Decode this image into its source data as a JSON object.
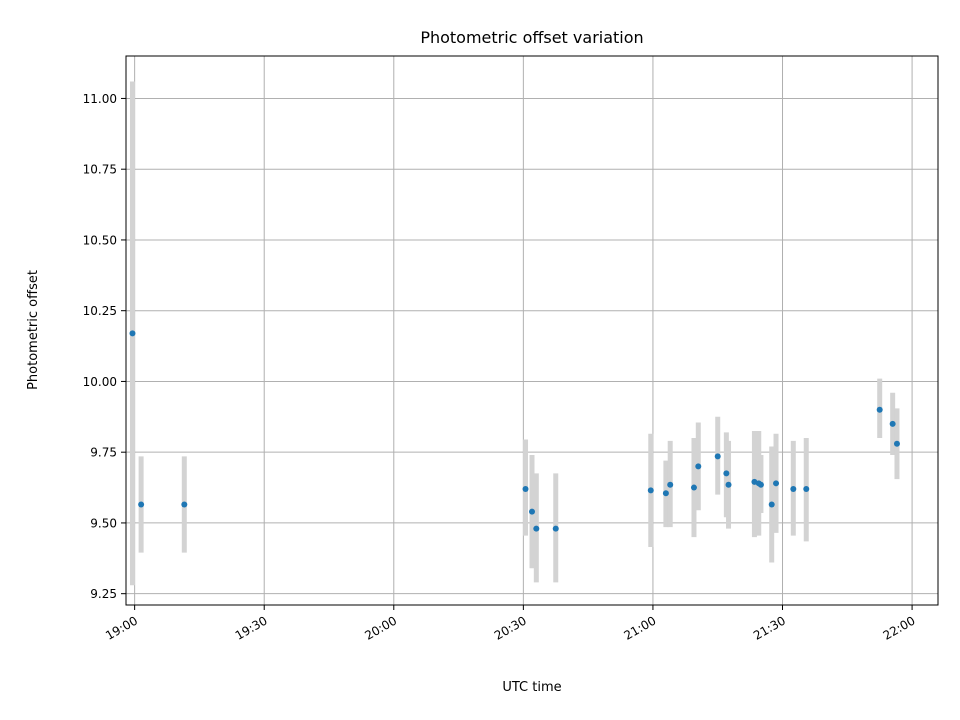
{
  "chart_data": {
    "type": "scatter",
    "title": "Photometric offset variation",
    "xlabel": "UTC time",
    "ylabel": "Photometric offset",
    "xlim": [
      "18:58",
      "22:06"
    ],
    "ylim": [
      9.21,
      11.15
    ],
    "x_ticks": [
      "19:00",
      "19:30",
      "20:00",
      "20:30",
      "21:00",
      "21:30",
      "22:00"
    ],
    "y_ticks": [
      "9.25",
      "9.50",
      "9.75",
      "10.00",
      "10.25",
      "10.50",
      "10.75",
      "11.00"
    ],
    "grid": true,
    "colors": {
      "point": "#1f77b4",
      "errorbar": "#d3d3d3",
      "grid": "#b0b0b0"
    },
    "series": [
      {
        "points": [
          {
            "x": "18:59:30",
            "y": 10.17,
            "lo": 9.28,
            "hi": 11.06
          },
          {
            "x": "19:01:30",
            "y": 9.565,
            "lo": 9.395,
            "hi": 9.735
          },
          {
            "x": "19:11:30",
            "y": 9.565,
            "lo": 9.395,
            "hi": 9.735
          },
          {
            "x": "20:30:30",
            "y": 9.62,
            "lo": 9.455,
            "hi": 9.795
          },
          {
            "x": "20:32:00",
            "y": 9.54,
            "lo": 9.34,
            "hi": 9.74
          },
          {
            "x": "20:33:00",
            "y": 9.48,
            "lo": 9.29,
            "hi": 9.675
          },
          {
            "x": "20:37:30",
            "y": 9.48,
            "lo": 9.29,
            "hi": 9.675
          },
          {
            "x": "20:59:30",
            "y": 9.615,
            "lo": 9.415,
            "hi": 9.815
          },
          {
            "x": "21:03:00",
            "y": 9.605,
            "lo": 9.485,
            "hi": 9.72
          },
          {
            "x": "21:04:00",
            "y": 9.635,
            "lo": 9.485,
            "hi": 9.79
          },
          {
            "x": "21:09:30",
            "y": 9.625,
            "lo": 9.45,
            "hi": 9.8
          },
          {
            "x": "21:10:30",
            "y": 9.7,
            "lo": 9.545,
            "hi": 9.855
          },
          {
            "x": "21:15:00",
            "y": 9.735,
            "lo": 9.6,
            "hi": 9.875
          },
          {
            "x": "21:17:00",
            "y": 9.675,
            "lo": 9.52,
            "hi": 9.82
          },
          {
            "x": "21:17:30",
            "y": 9.635,
            "lo": 9.48,
            "hi": 9.79
          },
          {
            "x": "21:23:30",
            "y": 9.645,
            "lo": 9.45,
            "hi": 9.825
          },
          {
            "x": "21:24:30",
            "y": 9.64,
            "lo": 9.455,
            "hi": 9.825
          },
          {
            "x": "21:25:00",
            "y": 9.635,
            "lo": 9.535,
            "hi": 9.74
          },
          {
            "x": "21:27:30",
            "y": 9.565,
            "lo": 9.36,
            "hi": 9.77
          },
          {
            "x": "21:28:30",
            "y": 9.64,
            "lo": 9.465,
            "hi": 9.815
          },
          {
            "x": "21:32:30",
            "y": 9.62,
            "lo": 9.455,
            "hi": 9.79
          },
          {
            "x": "21:35:30",
            "y": 9.62,
            "lo": 9.435,
            "hi": 9.8
          },
          {
            "x": "21:52:30",
            "y": 9.9,
            "lo": 9.8,
            "hi": 10.01
          },
          {
            "x": "21:55:30",
            "y": 9.85,
            "lo": 9.74,
            "hi": 9.96
          },
          {
            "x": "21:56:30",
            "y": 9.78,
            "lo": 9.655,
            "hi": 9.905
          }
        ]
      }
    ]
  }
}
